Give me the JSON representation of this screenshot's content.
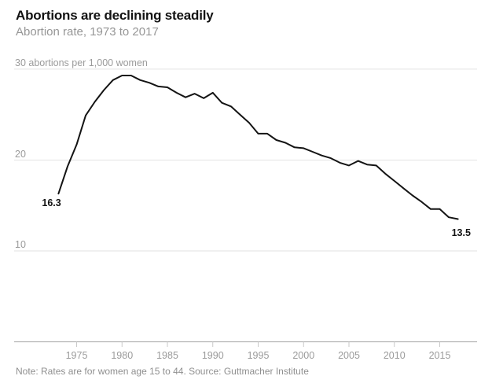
{
  "chart_data": {
    "type": "line",
    "title": "Abortions are declining steadily",
    "subtitle": "Abortion rate, 1973 to 2017",
    "note": "Note: Rates are for women age 15 to 44. Source: Guttmacher Institute",
    "x": [
      1973,
      1974,
      1975,
      1976,
      1977,
      1978,
      1979,
      1980,
      1981,
      1982,
      1983,
      1984,
      1985,
      1986,
      1987,
      1988,
      1989,
      1990,
      1991,
      1992,
      1993,
      1994,
      1995,
      1996,
      1997,
      1998,
      1999,
      2000,
      2001,
      2002,
      2003,
      2004,
      2005,
      2006,
      2007,
      2008,
      2009,
      2010,
      2011,
      2012,
      2013,
      2014,
      2015,
      2016,
      2017
    ],
    "values": [
      16.3,
      19.3,
      21.7,
      24.9,
      26.4,
      27.7,
      28.8,
      29.3,
      29.3,
      28.8,
      28.5,
      28.1,
      28.0,
      27.4,
      26.9,
      27.3,
      26.8,
      27.4,
      26.3,
      25.9,
      25.0,
      24.1,
      22.9,
      22.9,
      22.2,
      21.9,
      21.4,
      21.3,
      20.9,
      20.5,
      20.2,
      19.7,
      19.4,
      19.9,
      19.5,
      19.4,
      18.5,
      17.7,
      16.9,
      16.1,
      15.4,
      14.6,
      14.6,
      13.7,
      13.5
    ],
    "xticks": [
      "1975",
      "1980",
      "1985",
      "1990",
      "1995",
      "2000",
      "2005",
      "2010",
      "2015"
    ],
    "yticks": [
      {
        "value": 10,
        "label": "10"
      },
      {
        "value": 20,
        "label": "20"
      },
      {
        "value": 30,
        "label": "30 abortions per 1,000 women"
      }
    ],
    "xlim": [
      1973,
      2017
    ],
    "ylim": [
      0,
      30
    ],
    "grid": true,
    "legend": false,
    "first_point": {
      "year": 1973,
      "value": 16.3,
      "label": "16.3"
    },
    "last_point": {
      "year": 2017,
      "value": 13.5,
      "label": "13.5"
    },
    "colors": {
      "line": "#141414",
      "grid": "#e2e2e2",
      "axis": "#b3b3b3",
      "tick": "#c9c9c9",
      "label_gray": "#9b9b9b",
      "title": "#121212",
      "note_gray": "#8f8f8f"
    }
  }
}
